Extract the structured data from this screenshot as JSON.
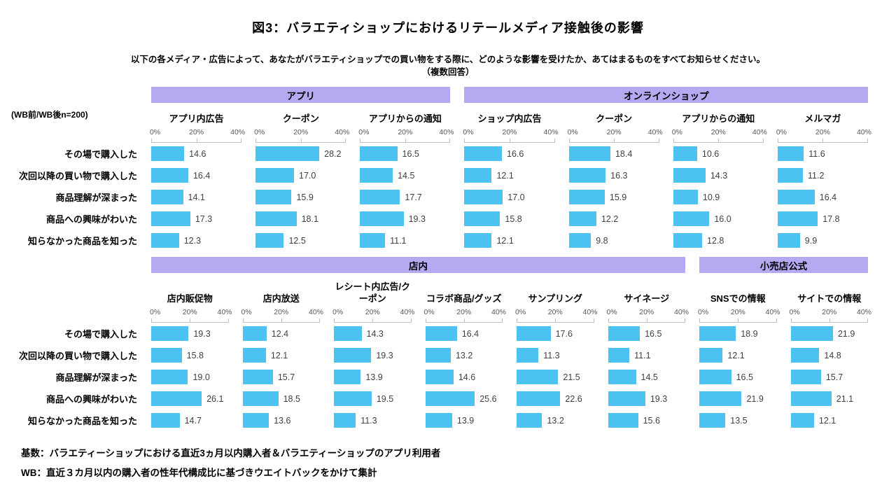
{
  "title": "図3：バラエティショップにおけるリテールメディア接触後の影響",
  "subtitle_line1": "以下の各メディア・広告によって、あなたがバラエティショップでの買い物をする際に、どのような影響を受けたか、あてはまるものをすべてお知らせください。",
  "subtitle_line2": "（複数回答）",
  "sample_note": "(WB前/WB後n=200)",
  "footer_line1": "基数：バラエティーショップにおける直近3ヵ月以内購入者＆バラエティーショップのアプリ利用者",
  "footer_line2": "WB：直近３カ月以内の購入者の性年代構成比に基づきウエイトバックをかけて集計",
  "colors": {
    "bar": "#4CC2F0",
    "band": "#B5AAF2",
    "axis": "#BFBFBF",
    "value_text": "#404040",
    "axis_text": "#595959"
  },
  "axis": {
    "ticks": [
      "0%",
      "20%",
      "40%"
    ],
    "min": 0,
    "max": 40
  },
  "chart_data": {
    "type": "bar",
    "orientation": "horizontal",
    "xlim": [
      0,
      40
    ],
    "categories": [
      "その場で購入した",
      "次回以降の買い物で購入した",
      "商品理解が深まった",
      "商品への興味がわいた",
      "知らなかった商品を知った"
    ],
    "rows": [
      {
        "groups": [
          {
            "label": "アプリ",
            "charts": [
              {
                "title": "アプリ内広告",
                "values": [
                  14.6,
                  16.4,
                  14.1,
                  17.3,
                  12.3
                ]
              },
              {
                "title": "クーポン",
                "values": [
                  28.2,
                  17.0,
                  15.9,
                  18.1,
                  12.5
                ]
              },
              {
                "title": "アプリからの通知",
                "values": [
                  16.5,
                  14.5,
                  17.7,
                  19.3,
                  11.1
                ]
              }
            ]
          },
          {
            "label": "オンラインショップ",
            "charts": [
              {
                "title": "ショップ内広告",
                "values": [
                  16.6,
                  12.1,
                  17.0,
                  15.8,
                  12.1
                ]
              },
              {
                "title": "クーポン",
                "values": [
                  18.4,
                  16.3,
                  15.9,
                  12.2,
                  9.8
                ]
              },
              {
                "title": "アプリからの通知",
                "values": [
                  10.6,
                  14.3,
                  10.9,
                  16.0,
                  12.8
                ]
              },
              {
                "title": "メルマガ",
                "values": [
                  11.6,
                  11.2,
                  16.4,
                  17.8,
                  9.9
                ]
              }
            ]
          }
        ]
      },
      {
        "groups": [
          {
            "label": "店内",
            "charts": [
              {
                "title": "店内販促物",
                "values": [
                  19.3,
                  15.8,
                  19.0,
                  26.1,
                  14.7
                ]
              },
              {
                "title": "店内放送",
                "values": [
                  12.4,
                  12.1,
                  15.7,
                  18.5,
                  13.6
                ]
              },
              {
                "title": "レシート内広告/クーポン",
                "values": [
                  14.3,
                  19.3,
                  13.9,
                  19.5,
                  11.3
                ]
              },
              {
                "title": "コラボ商品/グッズ",
                "values": [
                  16.4,
                  13.2,
                  14.6,
                  25.6,
                  13.9
                ]
              },
              {
                "title": "サンプリング",
                "values": [
                  17.6,
                  11.3,
                  21.5,
                  22.6,
                  13.2
                ]
              },
              {
                "title": "サイネージ",
                "values": [
                  16.5,
                  11.1,
                  14.5,
                  19.3,
                  15.6
                ]
              }
            ]
          },
          {
            "label": "小売店公式",
            "charts": [
              {
                "title": "SNSでの情報",
                "values": [
                  18.9,
                  12.1,
                  16.5,
                  21.9,
                  13.5
                ]
              },
              {
                "title": "サイトでの情報",
                "values": [
                  21.9,
                  14.8,
                  15.7,
                  21.1,
                  12.1
                ]
              }
            ]
          }
        ]
      }
    ]
  }
}
